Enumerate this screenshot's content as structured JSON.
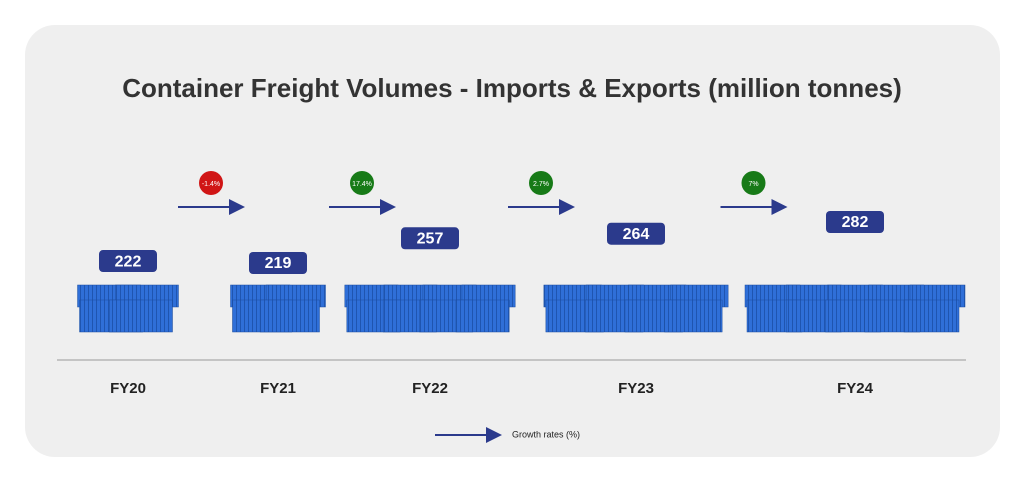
{
  "chart_data": {
    "type": "pictograph",
    "title": "Container Freight Volumes - Imports & Exports (million tonnes)",
    "categories": [
      "FY20",
      "FY21",
      "FY22",
      "FY23",
      "FY24"
    ],
    "values": [
      222,
      219,
      257,
      264,
      282
    ],
    "color": "#2f6fd8",
    "label_color": "#2b3a8c",
    "growth": {
      "name": "Growth rates (%)",
      "values": [
        -1.4,
        17.4,
        2.7,
        7
      ],
      "value_labels": [
        "-1.4%",
        "17.4%",
        "2.7%",
        "7%"
      ],
      "positive_color": "#177a17",
      "negative_color": "#d01515",
      "arrow_color": "#2b3a8c"
    }
  }
}
